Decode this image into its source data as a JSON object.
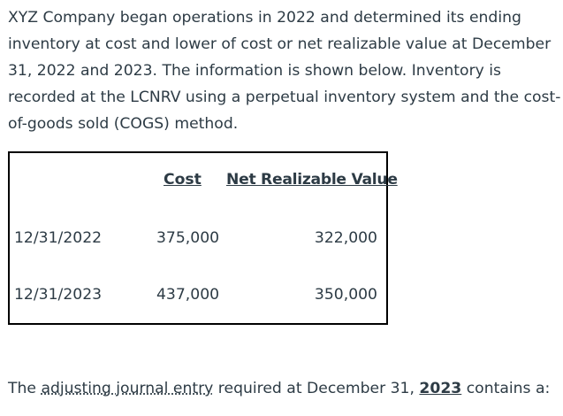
{
  "intro_lines": [
    "XYZ Company began operations in 2022 and determined its ending",
    "inventory at cost and lower of cost or net realizable value at December",
    "31, 2022 and 2023. The information is shown below. Inventory is",
    "recorded at the LCNRV using a perpetual inventory system and the cost-",
    "of-goods sold (COGS) method."
  ],
  "table": {
    "headers": {
      "cost": "Cost",
      "nrv": "Net Realizable Value"
    },
    "rows": [
      {
        "date": "12/31/2022",
        "cost": "375,000",
        "nrv": "322,000"
      },
      {
        "date": "12/31/2023",
        "cost": "437,000",
        "nrv": "350,000"
      }
    ]
  },
  "question": {
    "part1": "The ",
    "link": "adjusting journal entry",
    "part2": " required at December 31, ",
    "year": "2023",
    "part3": " contains a:"
  }
}
